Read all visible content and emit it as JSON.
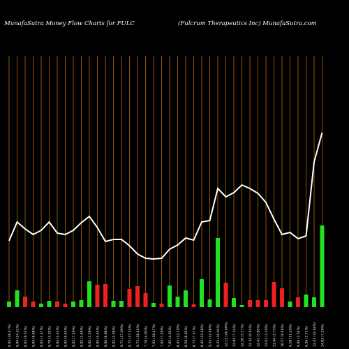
{
  "chart_data": {
    "type": "combo",
    "title": "MunafaSutra  Money Flow  Charts for FULC",
    "subtitle": "(Fulcrum Therapeutics Inc) MunafaSutra.com",
    "categories": [
      "0.04 (18.47%)",
      "0.04 (24.31%)",
      "0.03 (9.52%)",
      "0.03 (9.28%)",
      "0.03 (1.17%)",
      "0.70 (3.33%)",
      "0.04 (2.13%)",
      "0.03 (0.42%)",
      "0.02 (7.19%)",
      "0.02 (1.48%)",
      "0.02 (1.59%)",
      "0.05 (5.42%)",
      "0.06 (8.98%)",
      "0.02 (2.28%)",
      "0.71 (17.09%)",
      "0.72 (17.35%)",
      "0.73 (18.42%)",
      "7.76 (4.03%)",
      "7.03 (18.47%)",
      "7.04 (7.29%)",
      "7.05 (4.32%)",
      "8.43 (12.10%)",
      "8.56 (8.02%)",
      "8.73 (7.17%)",
      "8.45 (12.48%)",
      "9.32 (12.48%)",
      "9.22 (19.04%)",
      "12.13 (28.69%)",
      "12.04 (7.24%)",
      "12.20 (5.17%)",
      "12.34 (0.44%)",
      "12.41 (5.85%)",
      "12.03 (3.20%)",
      "11.94 (3.73%)",
      "10.57 (9.46%)",
      "9.18 (11.20%)",
      "9.06 (2.54%)",
      "9.36 (3.71%)",
      "12.43 (32.64%)",
      "14.83 (7.29%)"
    ],
    "bars": {
      "values": [
        8,
        24,
        15,
        8,
        5,
        9,
        8,
        5,
        8,
        10,
        37,
        32,
        33,
        9,
        9,
        26,
        30,
        20,
        6,
        5,
        31,
        15,
        24,
        4,
        40,
        11,
        99,
        35,
        13,
        3,
        10,
        10,
        10,
        36,
        27,
        8,
        14,
        18,
        14,
        117
      ],
      "colors": [
        "#22e022",
        "#22e022",
        "#ee2020",
        "#ee2020",
        "#22e022",
        "#22e022",
        "#ee2020",
        "#ee2020",
        "#22e022",
        "#22e022",
        "#22e022",
        "#ee2020",
        "#ee2020",
        "#22e022",
        "#22e022",
        "#ee2020",
        "#ee2020",
        "#ee2020",
        "#22e022",
        "#ee2020",
        "#22e022",
        "#22e022",
        "#22e022",
        "#ee2020",
        "#22e022",
        "#22e022",
        "#22e022",
        "#ee2020",
        "#22e022",
        "#22e022",
        "#ee2020",
        "#ee2020",
        "#ee2020",
        "#ee2020",
        "#ee2020",
        "#22e022",
        "#ee2020",
        "#22e022",
        "#22e022",
        "#22e022"
      ]
    },
    "line": {
      "values": [
        95,
        122,
        112,
        104,
        110,
        122,
        106,
        104,
        110,
        121,
        130,
        114,
        94,
        97,
        97,
        88,
        76,
        70,
        69,
        70,
        83,
        89,
        99,
        96,
        122,
        124,
        170,
        158,
        164,
        175,
        170,
        163,
        150,
        126,
        104,
        107,
        98,
        102,
        208,
        250
      ],
      "color": "#ffffff"
    },
    "ylim": [
      0,
      360
    ],
    "category_line_color": "#b8690a"
  }
}
